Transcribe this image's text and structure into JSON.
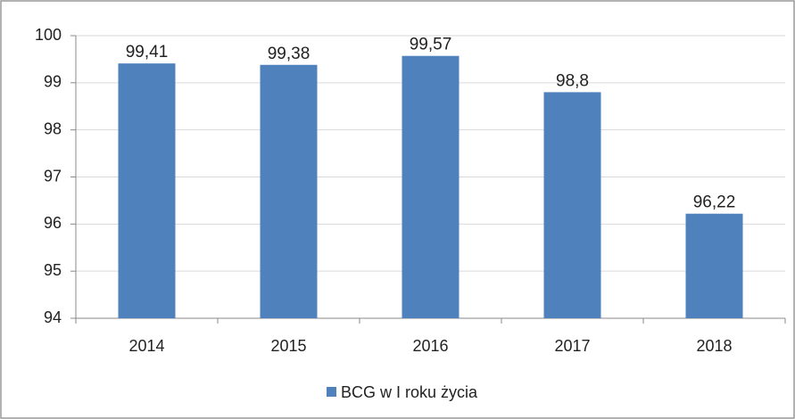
{
  "chart_data": {
    "type": "bar",
    "categories": [
      "2014",
      "2015",
      "2016",
      "2017",
      "2018"
    ],
    "series": [
      {
        "name": "BCG w I roku życia",
        "color": "#4f81bd",
        "values": [
          99.41,
          99.38,
          99.57,
          98.8,
          96.22
        ],
        "value_labels": [
          "99,41",
          "99,38",
          "99,57",
          "98,8",
          "96,22"
        ]
      }
    ],
    "ylim": [
      94,
      100
    ],
    "yticks": [
      94,
      95,
      96,
      97,
      98,
      99,
      100
    ],
    "grid": true,
    "legend": "bottom"
  }
}
